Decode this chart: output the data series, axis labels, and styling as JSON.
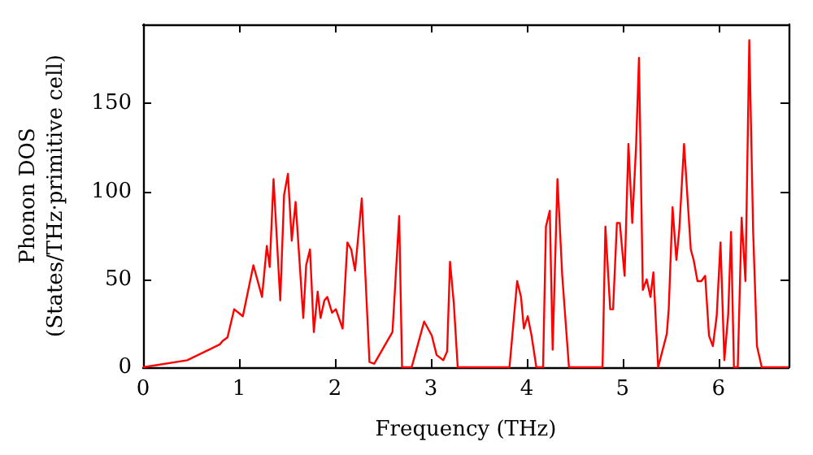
{
  "chart_data": {
    "type": "line",
    "xlabel": "Frequency (THz)",
    "ylabel": "Phonon DOS\n(States/THz·primitive cell)",
    "xlim": [
      0,
      6.73
    ],
    "ylim": [
      0,
      195
    ],
    "xticks": [
      0,
      1,
      2,
      3,
      4,
      5,
      6
    ],
    "yticks": [
      0,
      50,
      100,
      150
    ],
    "grid": false,
    "marker": "none",
    "line_style": "solid",
    "series": [
      {
        "color": "#ff0000",
        "x": [
          0,
          0.46,
          0.8,
          0.83,
          0.88,
          0.95,
          1.04,
          1.15,
          1.24,
          1.29,
          1.32,
          1.36,
          1.43,
          1.47,
          1.51,
          1.55,
          1.59,
          1.67,
          1.7,
          1.74,
          1.78,
          1.82,
          1.85,
          1.89,
          1.92,
          1.97,
          2.01,
          2.08,
          2.13,
          2.17,
          2.21,
          2.28,
          2.36,
          2.41,
          2.6,
          2.67,
          2.7,
          2.8,
          2.93,
          3.01,
          3.06,
          3.13,
          3.17,
          3.2,
          3.24,
          3.28,
          3.82,
          3.9,
          3.94,
          3.97,
          4.01,
          4.05,
          4.1,
          4.17,
          4.2,
          4.24,
          4.27,
          4.32,
          4.37,
          4.44,
          4.79,
          4.82,
          4.87,
          4.9,
          4.94,
          4.97,
          5.02,
          5.06,
          5.1,
          5.14,
          5.17,
          5.21,
          5.25,
          5.29,
          5.32,
          5.37,
          5.46,
          5.48,
          5.52,
          5.56,
          5.59,
          5.64,
          5.71,
          5.74,
          5.78,
          5.82,
          5.86,
          5.9,
          5.94,
          5.98,
          6.02,
          6.06,
          6.1,
          6.13,
          6.16,
          6.2,
          6.24,
          6.28,
          6.32,
          6.36,
          6.4,
          6.45,
          6.73
        ],
        "values": [
          0,
          4,
          13,
          15,
          17,
          33,
          29,
          58,
          40,
          69,
          57,
          107,
          38,
          98,
          110,
          72,
          94,
          28,
          58,
          67,
          20,
          43,
          28,
          38,
          40,
          31,
          33,
          22,
          71,
          67,
          55,
          96,
          3,
          2,
          20,
          86,
          0,
          0,
          26,
          18,
          7,
          4,
          9,
          60,
          36,
          0,
          0,
          49,
          40,
          22,
          29,
          18,
          0,
          0,
          80,
          89,
          10,
          107,
          52,
          0,
          0,
          80,
          33,
          33,
          82,
          82,
          52,
          127,
          82,
          126,
          176,
          44,
          50,
          40,
          54,
          0,
          19,
          33,
          91,
          61,
          78,
          127,
          67,
          61,
          49,
          49,
          52,
          18,
          12,
          29,
          71,
          4,
          30,
          77,
          0,
          0,
          85,
          49,
          186,
          78,
          12,
          0,
          0
        ]
      }
    ]
  }
}
